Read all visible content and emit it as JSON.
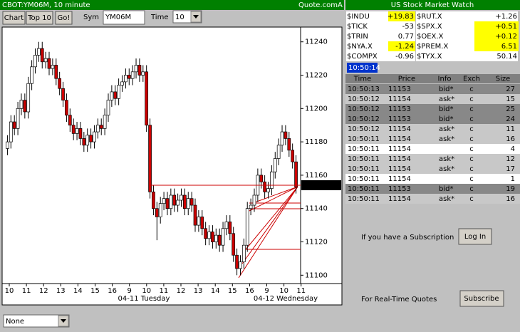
{
  "header": {
    "title": "CBOT:YM06M, 10 minute",
    "source": "Quote.com",
    "corner": "A"
  },
  "toolbar": {
    "buttons": [
      "Chart",
      "Top 10",
      "Go!"
    ],
    "sym_label": "Sym",
    "sym_value": "YM06M",
    "time_label": "Time",
    "time_value": "10"
  },
  "chart_data": {
    "type": "candlestick",
    "open": [
      11176,
      11180,
      11192,
      11188,
      11200,
      11205,
      11198,
      11215,
      11225,
      11232,
      11236,
      11228,
      11230,
      11224,
      11226,
      11218,
      11212,
      11205,
      11196,
      11190,
      11185,
      11188,
      11182,
      11178,
      11184,
      11180,
      11186,
      11190,
      11188,
      11196,
      11205,
      11210,
      11206,
      11214,
      11216,
      11220,
      11218,
      11222,
      11226,
      11220,
      11222,
      11190,
      11150,
      11140,
      11135,
      11143,
      11146,
      11140,
      11148,
      11142,
      11145,
      11148,
      11140,
      11146,
      11142,
      11130,
      11135,
      11128,
      11122,
      11126,
      11120,
      11124,
      11118,
      11128,
      11132,
      11125,
      11112,
      11104,
      11108,
      11118,
      11140,
      11142,
      11148,
      11160,
      11156,
      11150,
      11152,
      11162,
      11170,
      11178,
      11186,
      11182,
      11175,
      11168
    ],
    "high": [
      11184,
      11196,
      11196,
      11204,
      11209,
      11209,
      11219,
      11229,
      11236,
      11240,
      11240,
      11234,
      11234,
      11230,
      11230,
      11222,
      11216,
      11209,
      11200,
      11194,
      11192,
      11192,
      11186,
      11188,
      11188,
      11190,
      11194,
      11194,
      11200,
      11209,
      11214,
      11214,
      11218,
      11220,
      11224,
      11224,
      11226,
      11230,
      11230,
      11226,
      11226,
      11194,
      11154,
      11144,
      11147,
      11150,
      11150,
      11152,
      11152,
      11149,
      11152,
      11152,
      11150,
      11150,
      11146,
      11139,
      11139,
      11132,
      11130,
      11130,
      11128,
      11128,
      11132,
      11136,
      11136,
      11129,
      11116,
      11112,
      11122,
      11144,
      11146,
      11152,
      11164,
      11164,
      11160,
      11156,
      11166,
      11174,
      11182,
      11190,
      11190,
      11186,
      11179,
      11172
    ],
    "low": [
      11172,
      11176,
      11184,
      11184,
      11196,
      11194,
      11194,
      11211,
      11221,
      11228,
      11224,
      11224,
      11220,
      11220,
      11214,
      11208,
      11201,
      11192,
      11186,
      11181,
      11181,
      11178,
      11174,
      11174,
      11176,
      11176,
      11182,
      11184,
      11184,
      11192,
      11201,
      11202,
      11202,
      11210,
      11212,
      11214,
      11214,
      11218,
      11216,
      11216,
      11186,
      11146,
      11136,
      11121,
      11131,
      11139,
      11136,
      11136,
      11138,
      11138,
      11141,
      11136,
      11136,
      11138,
      11126,
      11126,
      11124,
      11118,
      11118,
      11116,
      11116,
      11114,
      11114,
      11124,
      11121,
      11108,
      11100,
      11100,
      11104,
      11114,
      11136,
      11138,
      11144,
      11152,
      11146,
      11146,
      11148,
      11158,
      11166,
      11174,
      11178,
      11171,
      11164,
      11149
    ],
    "close": [
      11180,
      11192,
      11188,
      11200,
      11205,
      11198,
      11215,
      11225,
      11232,
      11236,
      11228,
      11230,
      11224,
      11226,
      11218,
      11212,
      11205,
      11196,
      11190,
      11185,
      11188,
      11182,
      11178,
      11184,
      11180,
      11186,
      11190,
      11188,
      11196,
      11205,
      11210,
      11206,
      11214,
      11216,
      11220,
      11218,
      11222,
      11226,
      11220,
      11222,
      11190,
      11150,
      11140,
      11135,
      11143,
      11146,
      11140,
      11148,
      11142,
      11145,
      11148,
      11140,
      11146,
      11142,
      11130,
      11135,
      11128,
      11122,
      11126,
      11120,
      11124,
      11118,
      11128,
      11132,
      11125,
      11112,
      11104,
      11108,
      11118,
      11140,
      11142,
      11148,
      11160,
      11156,
      11150,
      11152,
      11162,
      11170,
      11178,
      11186,
      11182,
      11175,
      11168,
      11153
    ],
    "ylim": [
      11095,
      11248
    ],
    "yticks": [
      11100,
      11120,
      11140,
      11160,
      11180,
      11200,
      11220,
      11240
    ],
    "xticks": [
      "10",
      "11",
      "12",
      "13",
      "14",
      "15",
      "16",
      "9",
      "10",
      "11",
      "12",
      "13",
      "14",
      "15",
      "16",
      "9",
      "10",
      "11"
    ],
    "date_labels": [
      "04-11 Tuesday",
      "04-12 Wednesday"
    ],
    "last_price": 11154,
    "up_color": "#ffffff",
    "down_color": "#cc0000",
    "line_color": "#cc0000"
  },
  "market_watch": {
    "title": "US Stock Market Watch",
    "rows": [
      [
        {
          "symbol": "$INDU",
          "value": "+19.83",
          "highlight": true
        },
        {
          "symbol": "$RUT.X",
          "value": "+1.26",
          "highlight": false
        }
      ],
      [
        {
          "symbol": "$TICK",
          "value": "-53",
          "highlight": false
        },
        {
          "symbol": "$SPX.X",
          "value": "+0.51",
          "highlight": true
        }
      ],
      [
        {
          "symbol": "$TRIN",
          "value": "0.77",
          "highlight": false
        },
        {
          "symbol": "$OEX.X",
          "value": "+0.12",
          "highlight": true
        }
      ],
      [
        {
          "symbol": "$NYA.X",
          "value": "-1.24",
          "highlight": true
        },
        {
          "symbol": "$PREM.X",
          "value": "6.51",
          "highlight": true
        }
      ],
      [
        {
          "symbol": "$COMPX",
          "value": "-0.96",
          "highlight": false
        },
        {
          "symbol": "$TYX.X",
          "value": "50.14",
          "highlight": false
        }
      ]
    ]
  },
  "clock": "10:50:14",
  "trades": {
    "columns": [
      "Time",
      "Price",
      "Info",
      "Exch",
      "Size"
    ],
    "rows": [
      [
        "10:50:13",
        11153,
        "bid*",
        "c",
        27
      ],
      [
        "10:50:12",
        11154,
        "ask*",
        "c",
        15
      ],
      [
        "10:50:12",
        11153,
        "bid*",
        "c",
        25
      ],
      [
        "10:50:12",
        11153,
        "bid*",
        "c",
        24
      ],
      [
        "10:50:12",
        11154,
        "ask*",
        "c",
        11
      ],
      [
        "10:50:11",
        11154,
        "ask*",
        "c",
        16
      ],
      [
        "10:50:11",
        11154,
        null,
        "c",
        4
      ],
      [
        "10:50:11",
        11154,
        "ask*",
        "c",
        12
      ],
      [
        "10:50:11",
        11154,
        "ask*",
        "c",
        17
      ],
      [
        "10:50:11",
        11154,
        null,
        "c",
        1
      ],
      [
        "10:50:11",
        11153,
        "bid*",
        "c",
        19
      ],
      [
        "10:50:11",
        11154,
        "ask*",
        "c",
        16
      ]
    ]
  },
  "subscription": {
    "text": "If you have a Subscription",
    "login": "Log In",
    "realtime_text": "For Real-Time Quotes",
    "subscribe": "Subscribe"
  },
  "indicator": "None"
}
